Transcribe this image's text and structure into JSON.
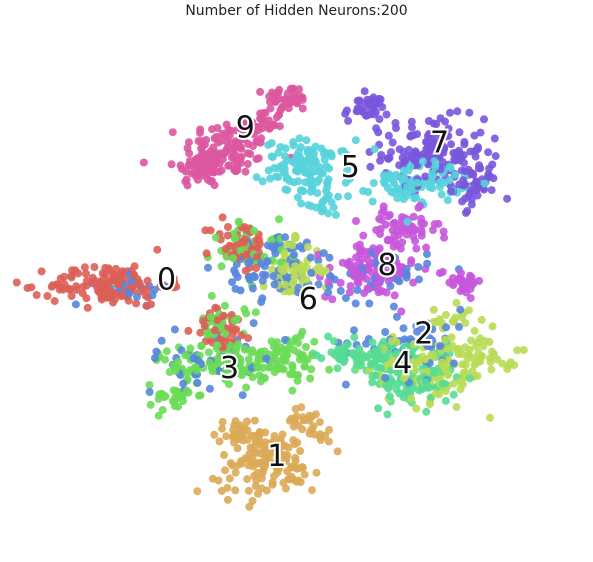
{
  "chart_data": {
    "type": "scatter",
    "title": "Number of Hidden Neurons:200",
    "xlabel": "",
    "ylabel": "",
    "grid": false,
    "axes_visible": false,
    "legend": "none",
    "xlim": [
      0,
      100
    ],
    "ylim": [
      0,
      100
    ],
    "point_radius": 4,
    "palette": {
      "0": "#db5f57",
      "1": "#dbaa57",
      "2": "#b8db57",
      "3": "#6adb57",
      "4": "#57db94",
      "5": "#57d3db",
      "6": "#5786db",
      "7": "#7957db",
      "8": "#c657db",
      "9": "#db57a0"
    },
    "series": [
      {
        "name": "9",
        "color": "#db57a0",
        "label_pos": [
          41,
          82
        ],
        "clusters": [
          [
            38,
            78,
            6,
            4,
            90
          ],
          [
            33,
            74,
            4,
            3,
            60
          ],
          [
            49,
            88,
            3,
            2,
            40
          ],
          [
            44,
            83,
            3,
            2,
            30
          ]
        ]
      },
      {
        "name": "7",
        "color": "#7957db",
        "label_pos": [
          78,
          79
        ],
        "clusters": [
          [
            77,
            77,
            7,
            5,
            140
          ],
          [
            64,
            86,
            3,
            2,
            40
          ],
          [
            85,
            70,
            3,
            3,
            40
          ]
        ]
      },
      {
        "name": "5",
        "color": "#57d3db",
        "label_pos": [
          61,
          74
        ],
        "clusters": [
          [
            53,
            74,
            6,
            4,
            110
          ],
          [
            74,
            71,
            6,
            3,
            90
          ],
          [
            56,
            67,
            3,
            2,
            20
          ]
        ]
      },
      {
        "name": "8",
        "color": "#c657db",
        "label_pos": [
          68,
          54
        ],
        "clusters": [
          [
            65,
            53,
            6,
            4,
            110
          ],
          [
            71,
            61,
            5,
            3,
            60
          ],
          [
            82,
            51,
            3,
            2,
            30
          ]
        ]
      },
      {
        "name": "0",
        "color": "#db5f57",
        "label_pos": [
          26,
          51
        ],
        "clusters": [
          [
            15,
            50,
            8,
            3,
            130
          ],
          [
            40,
            58,
            4,
            4,
            50
          ],
          [
            37,
            41,
            4,
            3,
            40
          ]
        ]
      },
      {
        "name": "6",
        "color": "#5786db",
        "label_pos": [
          53,
          47
        ],
        "clusters": [
          [
            47,
            54,
            7,
            5,
            80
          ],
          [
            73,
            38,
            9,
            5,
            60
          ],
          [
            66,
            52,
            7,
            4,
            40
          ],
          [
            20,
            49,
            5,
            2,
            20
          ],
          [
            35,
            35,
            10,
            4,
            40
          ]
        ]
      },
      {
        "name": "2",
        "color": "#b8db57",
        "label_pos": [
          75,
          40
        ],
        "clusters": [
          [
            50,
            53,
            4,
            4,
            60
          ],
          [
            76,
            33,
            8,
            5,
            110
          ],
          [
            86,
            36,
            5,
            3,
            40
          ],
          [
            80,
            43,
            3,
            2,
            20
          ]
        ]
      },
      {
        "name": "4",
        "color": "#57db94",
        "label_pos": [
          71,
          34
        ],
        "clusters": [
          [
            73,
            31,
            6,
            4,
            110
          ],
          [
            68,
            36,
            4,
            2,
            40
          ],
          [
            60,
            36,
            4,
            2,
            40
          ]
        ]
      },
      {
        "name": "3",
        "color": "#6adb57",
        "label_pos": [
          38,
          33
        ],
        "clusters": [
          [
            40,
            34,
            11,
            3,
            150
          ],
          [
            27,
            27,
            3,
            2,
            30
          ],
          [
            37,
            42,
            3,
            3,
            30
          ],
          [
            42,
            58,
            5,
            4,
            40
          ],
          [
            50,
            38,
            3,
            2,
            20
          ]
        ]
      },
      {
        "name": "1",
        "color": "#dbaa57",
        "label_pos": [
          47,
          15
        ],
        "clusters": [
          [
            45,
            14,
            7,
            5,
            140
          ],
          [
            53,
            22,
            3,
            2,
            30
          ],
          [
            40,
            20,
            3,
            2,
            25
          ]
        ]
      }
    ]
  }
}
